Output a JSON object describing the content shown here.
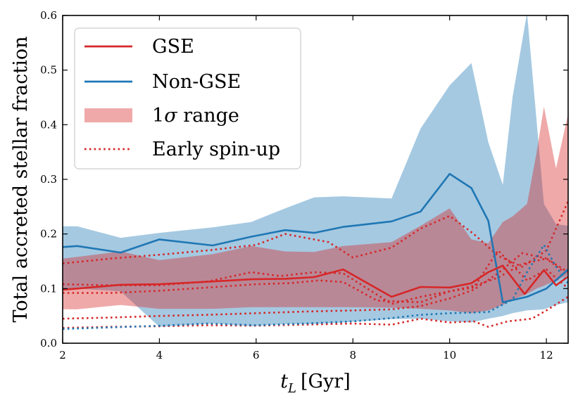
{
  "chart_data": {
    "type": "line",
    "xlabel": "t_L [Gyr]",
    "xlabel_main": "t",
    "xlabel_sub": "L",
    "xlabel_unit": "[Gyr]",
    "ylabel": "Total accreted stellar fraction",
    "xlim": [
      2,
      12.45
    ],
    "ylim": [
      0,
      0.6
    ],
    "xticks": [
      2,
      4,
      6,
      8,
      10,
      12
    ],
    "xtick_labels": [
      "2",
      "4",
      "6",
      "8",
      "10",
      "12"
    ],
    "yticks": [
      0,
      0.1,
      0.2,
      0.3,
      0.4,
      0.5,
      0.6
    ],
    "ytick_labels": [
      "0.0",
      "0.1",
      "0.2",
      "0.3",
      "0.4",
      "0.5",
      "0.6"
    ],
    "legend_position": "upper-left",
    "legend": [
      {
        "label": "GSE",
        "style": "line",
        "color": "#d62728"
      },
      {
        "label": "Non-GSE",
        "style": "line",
        "color": "#1f77b4"
      },
      {
        "label": "1σ range",
        "prefix": "1",
        "symbol": "σ",
        "suffix": " range",
        "style": "patch",
        "color": "#d62728"
      },
      {
        "label": "Early spin-up",
        "style": "dotted",
        "color": "#d62728"
      }
    ],
    "bands": [
      {
        "name": "Non-GSE 1σ range",
        "color": "#1f77b4",
        "opacity": 0.4,
        "x": [
          2,
          2.3,
          3.2,
          4.0,
          5.1,
          5.9,
          6.6,
          7.2,
          7.8,
          8.8,
          9.4,
          10.0,
          10.45,
          10.8,
          11.1,
          11.3,
          11.6,
          11.95,
          12.2,
          12.45
        ],
        "upper": [
          0.214,
          0.214,
          0.193,
          0.202,
          0.212,
          0.222,
          0.247,
          0.267,
          0.269,
          0.265,
          0.393,
          0.472,
          0.513,
          0.368,
          0.29,
          0.45,
          0.605,
          0.255,
          0.218,
          0.215
        ],
        "lower": [
          0.1,
          0.1,
          0.095,
          0.03,
          0.036,
          0.031,
          0.035,
          0.035,
          0.038,
          0.044,
          0.045,
          0.04,
          0.038,
          0.045,
          0.05,
          0.055,
          0.06,
          0.062,
          0.07,
          0.075
        ]
      },
      {
        "name": "GSE 1σ range",
        "color": "#d62728",
        "opacity": 0.4,
        "x": [
          2,
          2.3,
          3.2,
          4.0,
          5.1,
          5.9,
          6.6,
          7.2,
          7.8,
          8.8,
          9.4,
          10.0,
          10.45,
          10.8,
          11.1,
          11.3,
          11.6,
          11.8,
          11.95,
          12.2,
          12.45
        ],
        "upper": [
          0.155,
          0.158,
          0.168,
          0.152,
          0.163,
          0.178,
          0.168,
          0.167,
          0.178,
          0.185,
          0.215,
          0.247,
          0.19,
          0.183,
          0.222,
          0.232,
          0.255,
          0.35,
          0.433,
          0.32,
          0.42
        ],
        "lower": [
          0.062,
          0.062,
          0.07,
          0.063,
          0.063,
          0.066,
          0.066,
          0.066,
          0.066,
          0.065,
          0.063,
          0.06,
          0.055,
          0.06,
          0.07,
          0.08,
          0.09,
          0.1,
          0.105,
          0.115,
          0.125
        ]
      }
    ],
    "series": [
      {
        "name": "Non-GSE",
        "color": "#1f77b4",
        "style": "solid",
        "x": [
          2,
          2.3,
          3.2,
          4.0,
          5.1,
          5.9,
          6.6,
          7.2,
          7.8,
          8.8,
          9.4,
          10.0,
          10.45,
          10.8,
          11.1,
          11.6,
          12.0,
          12.45
        ],
        "y": [
          0.176,
          0.178,
          0.166,
          0.19,
          0.179,
          0.195,
          0.207,
          0.202,
          0.213,
          0.223,
          0.241,
          0.31,
          0.284,
          0.224,
          0.075,
          0.085,
          0.1,
          0.135
        ]
      },
      {
        "name": "GSE",
        "color": "#d62728",
        "style": "solid",
        "x": [
          2,
          2.3,
          3.2,
          4.0,
          5.1,
          5.9,
          6.6,
          7.2,
          7.8,
          8.8,
          9.4,
          10.0,
          10.45,
          10.8,
          11.1,
          11.55,
          11.95,
          12.2,
          12.45
        ],
        "y": [
          0.098,
          0.1,
          0.107,
          0.108,
          0.113,
          0.117,
          0.118,
          0.121,
          0.135,
          0.085,
          0.103,
          0.102,
          0.11,
          0.13,
          0.142,
          0.09,
          0.134,
          0.106,
          0.122
        ]
      },
      {
        "name": "Early spin-up 1",
        "color": "#d62728",
        "style": "dotted",
        "x": [
          2,
          3.0,
          4.0,
          5.0,
          6.0,
          6.6,
          7.5,
          8.0,
          8.8,
          9.4,
          10.0,
          10.5,
          11.0,
          11.5,
          12.0,
          12.45
        ],
        "y": [
          0.146,
          0.155,
          0.162,
          0.17,
          0.18,
          0.2,
          0.185,
          0.157,
          0.175,
          0.21,
          0.233,
          0.2,
          0.16,
          0.14,
          0.17,
          0.26
        ]
      },
      {
        "name": "Early spin-up 2",
        "color": "#d62728",
        "style": "dotted",
        "x": [
          2,
          3.0,
          4.0,
          5.0,
          6.0,
          6.7,
          7.3,
          7.8,
          8.5,
          9.4,
          10.0,
          10.5,
          11.0,
          11.5,
          12.0,
          12.45
        ],
        "y": [
          0.092,
          0.092,
          0.096,
          0.102,
          0.108,
          0.11,
          0.115,
          0.112,
          0.078,
          0.075,
          0.095,
          0.105,
          0.12,
          0.145,
          0.155,
          0.13
        ]
      },
      {
        "name": "Early spin-up 3",
        "color": "#d62728",
        "style": "dotted",
        "x": [
          2,
          3.0,
          4.0,
          5.0,
          5.9,
          6.5,
          7.2,
          7.8,
          8.8,
          9.4,
          10.0,
          10.5,
          11.0,
          11.6,
          12.0,
          12.45
        ],
        "y": [
          0.108,
          0.106,
          0.106,
          0.113,
          0.13,
          0.123,
          0.13,
          0.128,
          0.072,
          0.085,
          0.095,
          0.102,
          0.17,
          0.115,
          0.135,
          0.1
        ]
      },
      {
        "name": "Early spin-up 4",
        "color": "#d62728",
        "style": "dotted",
        "x": [
          2,
          3.0,
          4.0,
          5.0,
          6.0,
          7.0,
          8.0,
          8.8,
          9.4,
          10.0,
          10.5,
          11.0,
          11.5,
          12.0,
          12.45
        ],
        "y": [
          0.045,
          0.047,
          0.05,
          0.052,
          0.055,
          0.058,
          0.06,
          0.062,
          0.068,
          0.082,
          0.098,
          0.128,
          0.165,
          0.155,
          0.125
        ]
      },
      {
        "name": "Early spin-up 5",
        "color": "#d62728",
        "style": "dotted",
        "x": [
          2,
          3.0,
          4.0,
          5.0,
          6.0,
          7.0,
          8.0,
          8.8,
          9.4,
          10.0,
          10.5,
          10.8,
          11.2,
          11.7,
          12.0,
          12.45
        ],
        "y": [
          0.028,
          0.03,
          0.031,
          0.033,
          0.032,
          0.034,
          0.036,
          0.034,
          0.045,
          0.038,
          0.04,
          0.03,
          0.04,
          0.045,
          0.06,
          0.085
        ]
      },
      {
        "name": "Non-GSE early spin-up",
        "color": "#1f77b4",
        "style": "dotted",
        "x": [
          2,
          3.0,
          4.0,
          5.0,
          6.0,
          7.0,
          8.0,
          8.8,
          9.4,
          10.0,
          10.8,
          11.3,
          11.6,
          11.95,
          12.2,
          12.45
        ],
        "y": [
          0.026,
          0.029,
          0.032,
          0.036,
          0.033,
          0.036,
          0.04,
          0.046,
          0.052,
          0.055,
          0.057,
          0.08,
          0.13,
          0.18,
          0.14,
          0.11
        ]
      }
    ]
  }
}
